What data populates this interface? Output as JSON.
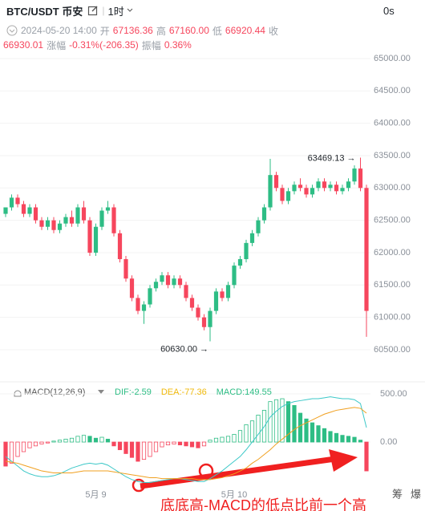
{
  "header": {
    "symbol": "BTC/USDT 币安",
    "interval": "1时",
    "timer": "0s",
    "info_row1": [
      {
        "text": "2024-05-20 14:00",
        "tone": "gray"
      },
      {
        "text": "开",
        "tone": "gray"
      },
      {
        "text": "67136.36",
        "tone": "red"
      },
      {
        "text": "高",
        "tone": "gray"
      },
      {
        "text": "67160.00",
        "tone": "red"
      },
      {
        "text": "低",
        "tone": "gray"
      },
      {
        "text": "66920.44",
        "tone": "red"
      },
      {
        "text": "收",
        "tone": "gray"
      }
    ],
    "info_row2": [
      {
        "text": "66930.01",
        "tone": "red"
      },
      {
        "text": "涨幅",
        "tone": "gray"
      },
      {
        "text": "-0.31%(-206.35)",
        "tone": "red"
      },
      {
        "text": "振幅",
        "tone": "gray"
      },
      {
        "text": "0.36%",
        "tone": "red"
      }
    ]
  },
  "chart_data": [
    {
      "type": "candlestick",
      "up_color": "#2ebd85",
      "down_color": "#f6465d",
      "categories": [
        null,
        null,
        null,
        null,
        null,
        null,
        null,
        null,
        null,
        null,
        null,
        null,
        null,
        null,
        null,
        "5月 9",
        null,
        null,
        null,
        null,
        null,
        null,
        null,
        null,
        null,
        null,
        null,
        null,
        null,
        null,
        null,
        null,
        null,
        null,
        null,
        null,
        null,
        null,
        "5月 10",
        null,
        null,
        null,
        null,
        null,
        null,
        null,
        null,
        null,
        null,
        null,
        null,
        null,
        null,
        null,
        null,
        null,
        null,
        null,
        null,
        null,
        null
      ],
      "open": [
        62600,
        62700,
        62850,
        62750,
        62600,
        62700,
        62500,
        62400,
        62500,
        62350,
        62450,
        62550,
        62450,
        62700,
        62500,
        62000,
        62400,
        62650,
        62700,
        62300,
        61900,
        61600,
        61300,
        61100,
        61200,
        61450,
        61550,
        61650,
        61500,
        61600,
        61500,
        61300,
        61150,
        61000,
        60850,
        61100,
        61400,
        61300,
        61500,
        61800,
        61900,
        62150,
        62300,
        62500,
        62700,
        63200,
        63000,
        62800,
        62950,
        63050,
        63000,
        62900,
        63000,
        63100,
        63000,
        63050,
        62950,
        63000,
        63100,
        63300,
        63000
      ],
      "high": [
        62700,
        62900,
        62900,
        62800,
        62750,
        62750,
        62550,
        62550,
        62550,
        62500,
        62600,
        62650,
        62750,
        62800,
        62550,
        62450,
        62700,
        62800,
        62750,
        62350,
        61950,
        61650,
        61350,
        61250,
        61500,
        61600,
        61700,
        61700,
        61650,
        61650,
        61550,
        61350,
        61200,
        61050,
        61150,
        61450,
        61450,
        61550,
        61850,
        61950,
        62200,
        62350,
        62550,
        62750,
        63450,
        63250,
        63050,
        63000,
        63100,
        63150,
        63050,
        63050,
        63150,
        63150,
        63100,
        63100,
        63050,
        63150,
        63350,
        63469.13,
        63050
      ],
      "low": [
        62550,
        62650,
        62700,
        62550,
        62550,
        62450,
        62350,
        62350,
        62300,
        62300,
        62400,
        62400,
        62400,
        62450,
        61950,
        61950,
        62350,
        62600,
        62250,
        61850,
        61550,
        61250,
        61050,
        60900,
        61150,
        61400,
        61500,
        61450,
        61450,
        61450,
        61250,
        61100,
        60950,
        60800,
        60630,
        61050,
        61250,
        61250,
        61450,
        61750,
        61850,
        62100,
        62250,
        62450,
        62650,
        62950,
        62750,
        62750,
        62900,
        62950,
        62850,
        62850,
        62950,
        62950,
        62950,
        62900,
        62900,
        62950,
        63050,
        62950,
        60700
      ],
      "close": [
        62700,
        62850,
        62750,
        62600,
        62700,
        62500,
        62400,
        62500,
        62350,
        62450,
        62550,
        62450,
        62700,
        62500,
        62000,
        62400,
        62650,
        62700,
        62300,
        61900,
        61600,
        61300,
        61100,
        61200,
        61450,
        61550,
        61650,
        61500,
        61600,
        61500,
        61300,
        61150,
        61000,
        60850,
        61100,
        61400,
        61300,
        61500,
        61800,
        61900,
        62150,
        62300,
        62500,
        62700,
        63200,
        63000,
        62800,
        62950,
        63050,
        63000,
        62900,
        63000,
        63100,
        63000,
        63050,
        62950,
        63000,
        63100,
        63300,
        63000,
        61100
      ],
      "ylim": [
        60140,
        65223
      ],
      "yticks": [
        {
          "value": 65000,
          "label": "65000.00"
        },
        {
          "value": 64500,
          "label": "64500.00"
        },
        {
          "value": 64000,
          "label": "64000.00"
        },
        {
          "value": 63500,
          "label": "63500.00"
        },
        {
          "value": 63000,
          "label": "63000.00"
        },
        {
          "value": 62500,
          "label": "62500.00"
        },
        {
          "value": 62000,
          "label": "62000.00"
        },
        {
          "value": 61500,
          "label": "61500.00"
        },
        {
          "value": 61000,
          "label": "61000.00"
        },
        {
          "value": 60500,
          "label": "60500.00"
        }
      ],
      "high_label": "63469.13 →",
      "low_label": "60630.00 →"
    },
    {
      "type": "macd",
      "legend_title": "MACD(12,26,9)",
      "legend": [
        {
          "text": "DIF:-2.59",
          "color": "#2ebd85"
        },
        {
          "text": "DEA:-77.36",
          "color": "#f0b90b"
        },
        {
          "text": "MACD:149.55",
          "color": "#2ebd85"
        }
      ],
      "up_color": "#2ebd85",
      "down_color": "#f6465d",
      "values": [
        -250,
        -220,
        -150,
        -100,
        -60,
        -40,
        -20,
        -10,
        10,
        20,
        30,
        40,
        60,
        70,
        60,
        40,
        50,
        30,
        -40,
        -80,
        -120,
        -160,
        -200,
        -180,
        -150,
        -100,
        -50,
        -30,
        -20,
        -30,
        -40,
        -50,
        -60,
        -40,
        20,
        40,
        50,
        60,
        80,
        120,
        180,
        220,
        280,
        330,
        420,
        440,
        450,
        420,
        380,
        300,
        240,
        200,
        170,
        140,
        110,
        90,
        70,
        60,
        50,
        20,
        -300
      ],
      "series": [
        {
          "name": "DIF",
          "color": "#3cc8c8",
          "values": [
            -150,
            -200,
            -250,
            -300,
            -330,
            -350,
            -360,
            -360,
            -350,
            -330,
            -300,
            -270,
            -250,
            -230,
            -220,
            -230,
            -220,
            -240,
            -280,
            -320,
            -360,
            -390,
            -410,
            -420,
            -420,
            -410,
            -400,
            -390,
            -380,
            -380,
            -390,
            -400,
            -410,
            -410,
            -380,
            -340,
            -300,
            -250,
            -200,
            -150,
            -80,
            0,
            80,
            160,
            260,
            320,
            370,
            400,
            420,
            430,
            440,
            450,
            450,
            460,
            470,
            460,
            450,
            450,
            440,
            400,
            150
          ]
        },
        {
          "name": "DEA",
          "color": "#f0a020",
          "values": [
            -200,
            -210,
            -220,
            -240,
            -260,
            -280,
            -300,
            -310,
            -320,
            -320,
            -320,
            -320,
            -310,
            -300,
            -300,
            -300,
            -300,
            -300,
            -310,
            -320,
            -330,
            -340,
            -350,
            -360,
            -370,
            -370,
            -380,
            -380,
            -380,
            -380,
            -380,
            -380,
            -390,
            -390,
            -390,
            -380,
            -370,
            -350,
            -330,
            -300,
            -270,
            -220,
            -180,
            -130,
            -80,
            -20,
            30,
            80,
            130,
            170,
            200,
            230,
            260,
            290,
            310,
            330,
            340,
            350,
            360,
            350,
            300
          ]
        }
      ],
      "ylim": [
        -408,
        592
      ],
      "yticks": [
        {
          "value": 500,
          "label": "500.00"
        },
        {
          "value": 0,
          "label": "0.00"
        }
      ]
    }
  ],
  "footer": {
    "tabs": [
      "筹",
      "爆"
    ],
    "annotation": "底底高-MACD的低点比前一个高"
  }
}
